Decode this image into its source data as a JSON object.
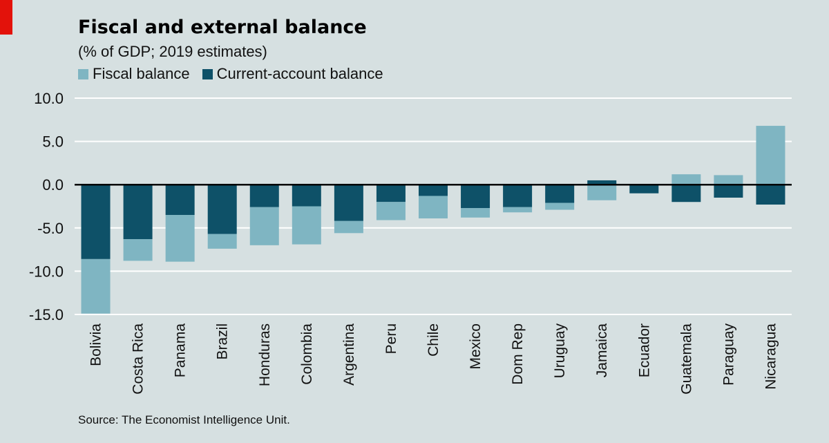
{
  "header": {
    "title": "Fiscal and external balance",
    "subtitle": "(% of GDP; 2019 estimates)"
  },
  "legend": [
    {
      "label": "Fiscal balance",
      "color": "#7fb5c2"
    },
    {
      "label": "Current-account balance",
      "color": "#0e5168"
    }
  ],
  "source": "Source: The Economist Intelligence Unit.",
  "chart_data": {
    "type": "bar",
    "stacked": true,
    "categories": [
      "Bolivia",
      "Costa Rica",
      "Panama",
      "Brazil",
      "Honduras",
      "Colombia",
      "Argentina",
      "Peru",
      "Chile",
      "Mexico",
      "Dom Rep",
      "Uruguay",
      "Jamaica",
      "Ecuador",
      "Guatemala",
      "Paraguay",
      "Nicaragua"
    ],
    "series": [
      {
        "name": "Current-account balance",
        "color": "#0e5168",
        "values": [
          -8.6,
          -6.3,
          -3.5,
          -5.7,
          -2.6,
          -2.5,
          -4.2,
          -2.0,
          -1.3,
          -2.7,
          -2.6,
          -2.1,
          0.5,
          -1.0,
          -2.0,
          -1.5,
          -2.3
        ]
      },
      {
        "name": "Fiscal balance",
        "color": "#7fb5c2",
        "values": [
          -6.3,
          -2.5,
          -5.4,
          -1.7,
          -4.4,
          -4.4,
          -1.4,
          -2.1,
          -2.6,
          -1.1,
          -0.6,
          -0.8,
          -1.8,
          0.0,
          1.2,
          1.1,
          6.8
        ]
      }
    ],
    "yticks": [
      "10.0",
      "5.0",
      "0.0",
      "-5.0",
      "-10.0",
      "-15.0"
    ],
    "ylim": [
      -15,
      10
    ],
    "grid": true,
    "legend_position": "top-left"
  }
}
